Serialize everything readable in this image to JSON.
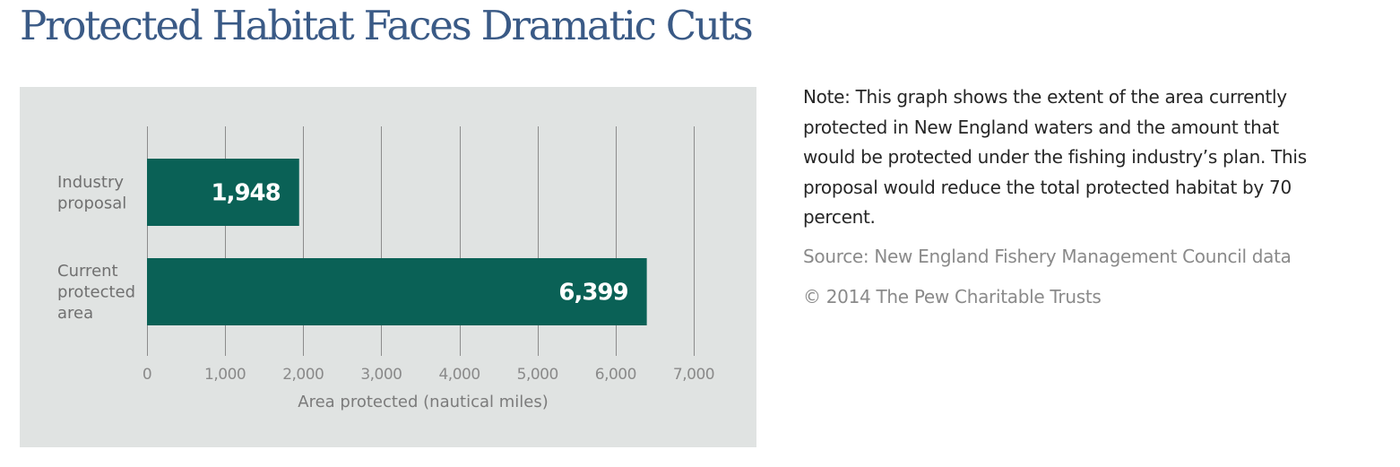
{
  "title": "Protected Habitat Faces Dramatic Cuts",
  "side_text": {
    "note": "Note: This graph shows the extent of the area currently protected in New England waters and the amount that would be protected under the fishing industry’s plan. This proposal would reduce the total protected habitat by 70 percent.",
    "source": "Source: New England Fishery Management Council data",
    "copyright": "© 2014 The Pew Charitable Trusts"
  },
  "colors": {
    "title": "#3a5a86",
    "bar": "#0a6156",
    "panel_bg": "#e0e3e2",
    "gridline": "#8c8c8c"
  },
  "chart_data": {
    "type": "bar",
    "orientation": "horizontal",
    "title": "Protected Habitat Faces Dramatic Cuts",
    "categories": [
      [
        "Industry",
        "proposal"
      ],
      [
        "Current",
        "protected",
        "area"
      ]
    ],
    "category_names": [
      "Industry proposal",
      "Current protected area"
    ],
    "values": [
      1948,
      6399
    ],
    "value_labels": [
      "1,948",
      "6,399"
    ],
    "xlabel": "Area protected (nautical miles)",
    "ylabel": "",
    "xlim": [
      0,
      7000
    ],
    "xticks": [
      0,
      1000,
      2000,
      3000,
      4000,
      5000,
      6000,
      7000
    ],
    "xtick_labels": [
      "0",
      "1,000",
      "2,000",
      "3,000",
      "4,000",
      "5,000",
      "6,000",
      "7,000"
    ],
    "grid": "vertical",
    "legend": "none"
  }
}
